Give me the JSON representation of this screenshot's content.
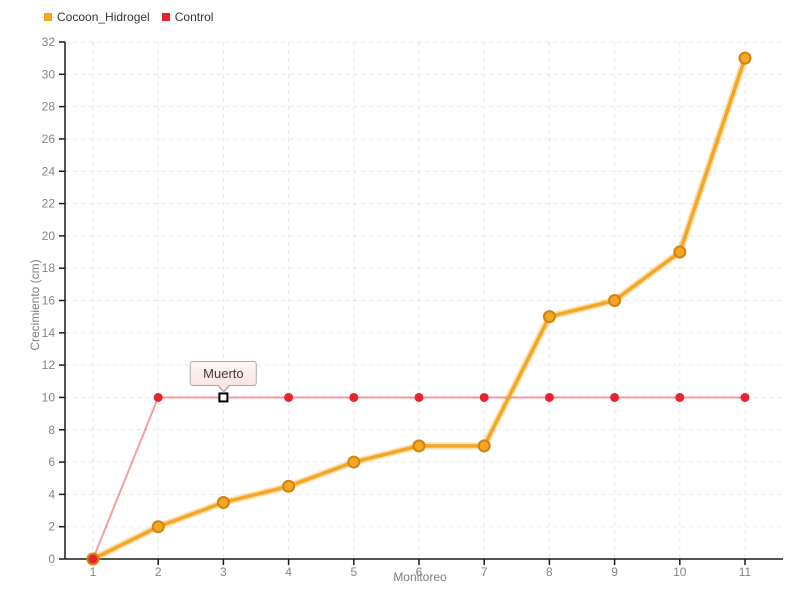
{
  "chart_data": {
    "type": "line",
    "xlabel": "Monitoreo",
    "ylabel": "Crecimiento (cm)",
    "x": [
      1,
      2,
      3,
      4,
      5,
      6,
      7,
      8,
      9,
      10,
      11
    ],
    "x_ticks": [
      1,
      2,
      3,
      4,
      5,
      6,
      7,
      8,
      9,
      10,
      11
    ],
    "y_ticks": [
      0,
      2,
      4,
      6,
      8,
      10,
      12,
      14,
      16,
      18,
      20,
      22,
      24,
      26,
      28,
      30,
      32
    ],
    "ylim": [
      0,
      32
    ],
    "grid": true,
    "legend_position": "top-left",
    "series": [
      {
        "name": "Cocoon_Hidrogel",
        "color": "#F5A623",
        "marker_stroke": "#CF8310",
        "marker": "circle",
        "values": [
          0,
          2,
          3.5,
          4.5,
          6,
          7,
          7,
          15,
          16,
          19,
          31
        ]
      },
      {
        "name": "Control",
        "color": "#E8232F",
        "line_opacity": 0.45,
        "marker": "circle",
        "values": [
          0,
          10,
          10,
          10,
          10,
          10,
          10,
          10,
          10,
          10,
          10
        ]
      }
    ],
    "annotation": {
      "label": "Muerto",
      "x": 3,
      "y": 10,
      "series": "Control",
      "marker": "open-square"
    }
  },
  "legend": {
    "items": [
      {
        "label": "Cocoon_Hidrogel",
        "color": "#F5A623"
      },
      {
        "label": "Control",
        "color": "#E8232F"
      }
    ]
  },
  "colors": {
    "background": "#ffffff",
    "grid": "#e6e6e6",
    "axis": "#1a1a1a",
    "tick_label": "#858585",
    "axis_label": "#7d7d7d",
    "legend_text": "#333333",
    "tooltip_bg": "#fbe5e2",
    "tooltip_border": "#a9a9a9",
    "tooltip_text": "#3c3c3c"
  }
}
